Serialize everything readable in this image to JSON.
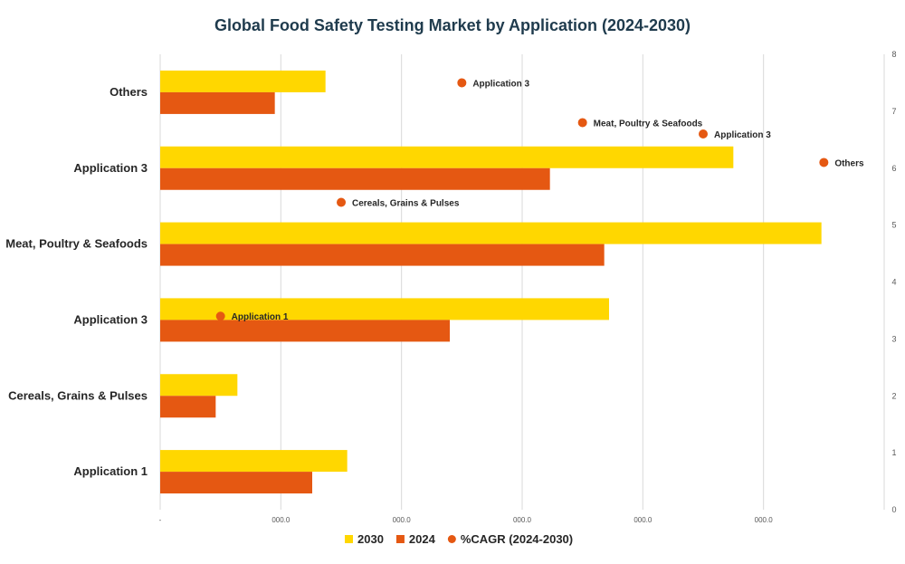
{
  "chart_data": {
    "type": "bar",
    "orientation": "horizontal",
    "title": "Global Food Safety Testing Market by Application (2024-2030)",
    "categories": [
      "Others",
      "Application 3",
      "Meat, Poultry & Seafoods",
      "Application 3",
      "Cereals, Grains & Pulses",
      "Application 1"
    ],
    "series": [
      {
        "name": "2030",
        "color": "#FFD700",
        "values": [
          1370,
          4750,
          5480,
          3720,
          640,
          1550
        ]
      },
      {
        "name": "2024",
        "color": "#E55812",
        "values": [
          950,
          3230,
          3680,
          2400,
          460,
          1260
        ]
      }
    ],
    "xlim": [
      0,
      6000
    ],
    "x_tick_labels": [
      "-",
      "000.0",
      "000.0",
      "000.0",
      "000.0",
      "000.0"
    ],
    "scatter": {
      "name": "%CAGR (2024-2030)",
      "color": "#E55812",
      "ylim": [
        0,
        8
      ],
      "y_ticks": [
        "0",
        "1",
        "2",
        "3",
        "4",
        "5",
        "6",
        "7",
        "8"
      ],
      "points": [
        {
          "label": "Application 1",
          "x": 0.5,
          "y": 3.4
        },
        {
          "label": "Cereals, Grains & Pulses",
          "x": 1.5,
          "y": 5.4
        },
        {
          "label": "Application 3",
          "x": 2.5,
          "y": 7.5
        },
        {
          "label": "Meat, Poultry & Seafoods",
          "x": 3.5,
          "y": 6.8
        },
        {
          "label": "Application 3",
          "x": 4.5,
          "y": 6.6
        },
        {
          "label": "Others",
          "x": 5.5,
          "y": 6.1
        }
      ],
      "xlim": [
        0,
        6
      ]
    },
    "legend": {
      "position": "bottom",
      "entries": [
        "2030",
        "2024",
        "%CAGR (2024-2030)"
      ]
    }
  }
}
